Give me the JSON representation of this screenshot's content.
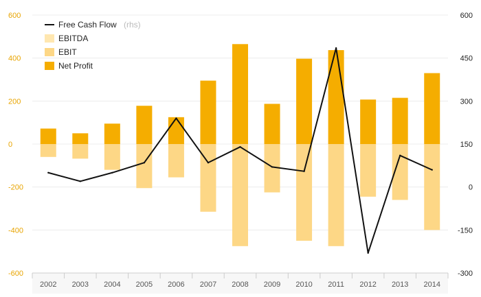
{
  "chart_data": {
    "type": "bar",
    "categories": [
      "2002",
      "2003",
      "2004",
      "2005",
      "2006",
      "2007",
      "2008",
      "2009",
      "2010",
      "2011",
      "2012",
      "2013",
      "2014"
    ],
    "series": [
      {
        "name": "EBITDA",
        "type": "bar",
        "axis": "left",
        "color": "#ffe7b0",
        "values": [
          null,
          null,
          null,
          null,
          null,
          null,
          null,
          null,
          null,
          null,
          null,
          null,
          null
        ]
      },
      {
        "name": "EBIT",
        "type": "bar",
        "axis": "left",
        "color": "#fdd786",
        "values": [
          -60,
          -68,
          -120,
          -205,
          -155,
          -315,
          -475,
          -225,
          -450,
          -475,
          -245,
          -260,
          -400
        ]
      },
      {
        "name": "Net Profit",
        "type": "bar",
        "axis": "left",
        "color": "#f5ad00",
        "values": [
          72,
          50,
          95,
          178,
          125,
          295,
          465,
          187,
          397,
          437,
          207,
          215,
          330
        ]
      },
      {
        "name": "Free Cash Flow",
        "type": "line",
        "axis": "right",
        "color": "#111111",
        "values": [
          50,
          20,
          50,
          85,
          240,
          85,
          140,
          70,
          55,
          485,
          -230,
          110,
          60
        ]
      }
    ],
    "y_left": {
      "range": [
        -600,
        600
      ],
      "ticks": [
        "600",
        "400",
        "200",
        "0",
        "-200",
        "-400",
        "-600"
      ]
    },
    "y_right": {
      "range": [
        -300,
        600
      ],
      "ticks": [
        "600",
        "450",
        "300",
        "150",
        "0",
        "-150",
        "-300"
      ]
    },
    "legend": {
      "position": "top-left",
      "items": [
        {
          "label": "Free Cash Flow",
          "suffix": "(rhs)",
          "symbol": "line",
          "color": "#111111"
        },
        {
          "label": "EBITDA",
          "suffix": "",
          "symbol": "box",
          "color": "#ffe7b0"
        },
        {
          "label": "EBIT",
          "suffix": "",
          "symbol": "box",
          "color": "#fdd786"
        },
        {
          "label": "Net Profit",
          "suffix": "",
          "symbol": "box",
          "color": "#f5ad00"
        }
      ]
    },
    "grid": true,
    "title": "",
    "xlabel": "",
    "ylabel": ""
  }
}
